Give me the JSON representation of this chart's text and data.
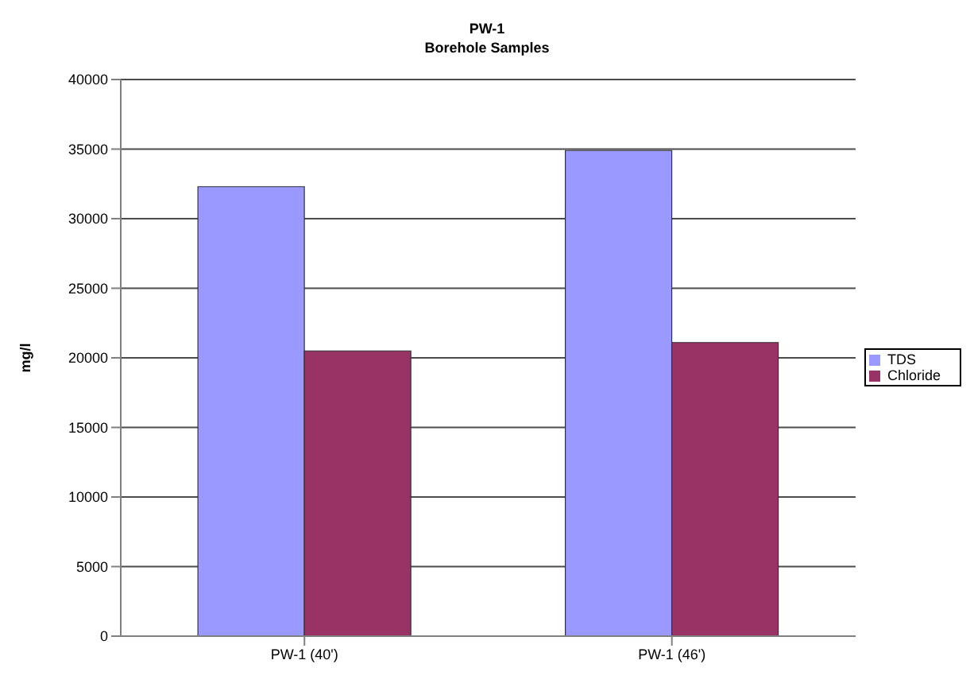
{
  "chart_data": {
    "type": "bar",
    "title": "PW-1",
    "subtitle": "Borehole Samples",
    "ylabel": "mg/l",
    "categories": [
      "PW-1 (40')",
      "PW-1 (46')"
    ],
    "series": [
      {
        "name": "TDS",
        "color": "#9999ff",
        "values": [
          32300,
          34900
        ]
      },
      {
        "name": "Chloride",
        "color": "#993366",
        "values": [
          20500,
          21100
        ]
      }
    ],
    "ylim": [
      0,
      40000
    ],
    "yticks": [
      0,
      5000,
      10000,
      15000,
      20000,
      25000,
      30000,
      35000,
      40000
    ],
    "grid": "y",
    "legend": "right"
  }
}
